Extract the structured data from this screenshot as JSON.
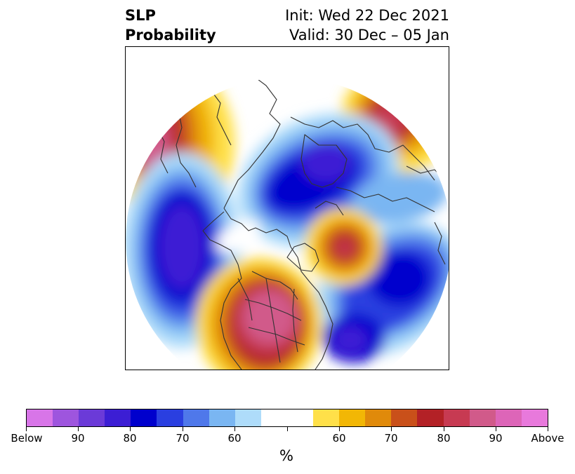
{
  "title": {
    "left_line1": "SLP",
    "left_line2": "Probability",
    "right_line1": "Init: Wed 22 Dec 2021",
    "right_line2": "Valid: 30 Dec – 05 Jan"
  },
  "colorbar": {
    "unit": "%",
    "labels": {
      "below": "Below",
      "b90": "90",
      "b80": "80",
      "b70": "70",
      "b60": "60",
      "a60": "60",
      "a70": "70",
      "a80": "80",
      "a90": "90",
      "above": "Above"
    },
    "colors": [
      "#d875e8",
      "#9e55de",
      "#6b3ad8",
      "#3c1ed4",
      "#0000cd",
      "#2a3fe0",
      "#4f78ea",
      "#7ab6f2",
      "#aedcfa",
      "#ffffff",
      "#ffffff",
      "#ffe049",
      "#f2b705",
      "#e08a0a",
      "#c9501a",
      "#b32126",
      "#c73a52",
      "#d15a8a",
      "#dd65b8",
      "#e879dc"
    ]
  },
  "map": {
    "projection": "north-polar stereographic",
    "colors": {
      "deep_blue": "#0000cd",
      "purple_blue": "#3c1ed4",
      "mid_blue": "#2a3fe0",
      "blue": "#4f78ea",
      "light_blue": "#7ab6f2",
      "pale_blue": "#aedcfa",
      "yellow": "#ffe049",
      "gold": "#f2b705",
      "orange": "#e08a0a",
      "dark_orange": "#c9501a",
      "red": "#b32126",
      "rose": "#c73a52",
      "pink": "#d15a8a",
      "coastline": "#333333"
    }
  }
}
